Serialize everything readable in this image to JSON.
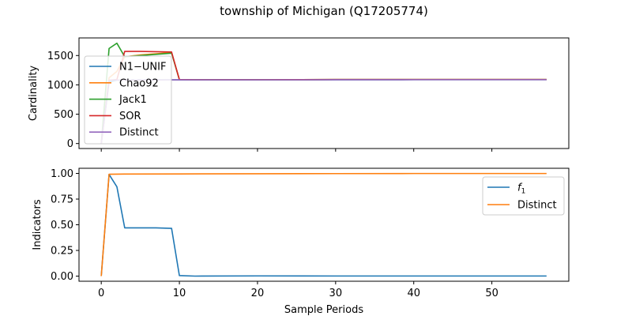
{
  "chart_data": {
    "title": "township of Michigan (Q17205774)",
    "xlabel": "Sample Periods",
    "xlim": [
      -2.85,
      59.85
    ],
    "xticks": [
      0,
      10,
      20,
      30,
      40,
      50
    ],
    "grid": false,
    "charts": [
      {
        "type": "line",
        "ylabel": "Cardinality",
        "ylim": [
          -85,
          1800
        ],
        "yticks": [
          0,
          500,
          1000,
          1500
        ],
        "legend": "upper-left",
        "series": [
          {
            "name": "N1−UNIF",
            "color": "#1f77b4",
            "points": [
              [
                0,
                0
              ],
              [
                1,
                1050
              ],
              [
                2,
                1080
              ],
              [
                3,
                1085
              ],
              [
                5,
                1085
              ],
              [
                7,
                1085
              ],
              [
                9,
                1085
              ],
              [
                10,
                1085
              ],
              [
                12,
                1085
              ],
              [
                20,
                1085
              ],
              [
                30,
                1087
              ],
              [
                40,
                1088
              ],
              [
                50,
                1088
              ],
              [
                57,
                1088
              ]
            ]
          },
          {
            "name": "Chao92",
            "color": "#ff7f0e",
            "points": [
              [
                0,
                0
              ],
              [
                1,
                1120
              ],
              [
                2,
                1230
              ],
              [
                3,
                1480
              ],
              [
                5,
                1510
              ],
              [
                7,
                1530
              ],
              [
                9,
                1550
              ],
              [
                10,
                1090
              ],
              [
                12,
                1088
              ],
              [
                20,
                1088
              ],
              [
                30,
                1090
              ],
              [
                40,
                1090
              ],
              [
                50,
                1090
              ],
              [
                57,
                1090
              ]
            ]
          },
          {
            "name": "Jack1",
            "color": "#2ca02c",
            "points": [
              [
                0,
                0
              ],
              [
                1,
                1620
              ],
              [
                2,
                1710
              ],
              [
                3,
                1480
              ],
              [
                5,
                1500
              ],
              [
                7,
                1520
              ],
              [
                9,
                1540
              ],
              [
                10,
                1090
              ],
              [
                12,
                1088
              ],
              [
                20,
                1088
              ],
              [
                30,
                1090
              ],
              [
                40,
                1090
              ],
              [
                50,
                1090
              ],
              [
                57,
                1090
              ]
            ]
          },
          {
            "name": "SOR",
            "color": "#d62728",
            "points": [
              [
                0,
                0
              ],
              [
                1,
                1080
              ],
              [
                2,
                1090
              ],
              [
                3,
                1570
              ],
              [
                5,
                1570
              ],
              [
                7,
                1565
              ],
              [
                9,
                1560
              ],
              [
                10,
                1090
              ],
              [
                12,
                1088
              ],
              [
                20,
                1088
              ],
              [
                30,
                1090
              ],
              [
                40,
                1090
              ],
              [
                50,
                1090
              ],
              [
                57,
                1090
              ]
            ]
          },
          {
            "name": "Distinct",
            "color": "#9467bd",
            "points": [
              [
                0,
                0
              ],
              [
                1,
                1080
              ],
              [
                2,
                1082
              ],
              [
                3,
                1083
              ],
              [
                5,
                1084
              ],
              [
                9,
                1085
              ],
              [
                10,
                1085
              ],
              [
                20,
                1085
              ],
              [
                30,
                1087
              ],
              [
                40,
                1088
              ],
              [
                50,
                1088
              ],
              [
                57,
                1088
              ]
            ]
          }
        ]
      },
      {
        "type": "line",
        "ylabel": "Indicators",
        "ylim": [
          -0.05,
          1.05
        ],
        "yticks": [
          0.0,
          0.25,
          0.5,
          0.75,
          1.0
        ],
        "legend": "upper-right",
        "series": [
          {
            "name": "f",
            "name_sub": "1",
            "color": "#1f77b4",
            "points": [
              [
                0,
                0
              ],
              [
                1,
                0.99
              ],
              [
                2,
                0.87
              ],
              [
                3,
                0.47
              ],
              [
                5,
                0.47
              ],
              [
                7,
                0.47
              ],
              [
                9,
                0.465
              ],
              [
                10,
                0.005
              ],
              [
                12,
                0.0
              ],
              [
                20,
                0.002
              ],
              [
                30,
                0.001
              ],
              [
                40,
                0.001
              ],
              [
                50,
                0.001
              ],
              [
                57,
                0.001
              ]
            ]
          },
          {
            "name": "Distinct",
            "color": "#ff7f0e",
            "points": [
              [
                0,
                0
              ],
              [
                1,
                0.992
              ],
              [
                2,
                0.993
              ],
              [
                3,
                0.994
              ],
              [
                10,
                0.995
              ],
              [
                20,
                0.997
              ],
              [
                30,
                0.998
              ],
              [
                40,
                0.999
              ],
              [
                50,
                0.999
              ],
              [
                57,
                0.999
              ]
            ]
          }
        ]
      }
    ]
  }
}
